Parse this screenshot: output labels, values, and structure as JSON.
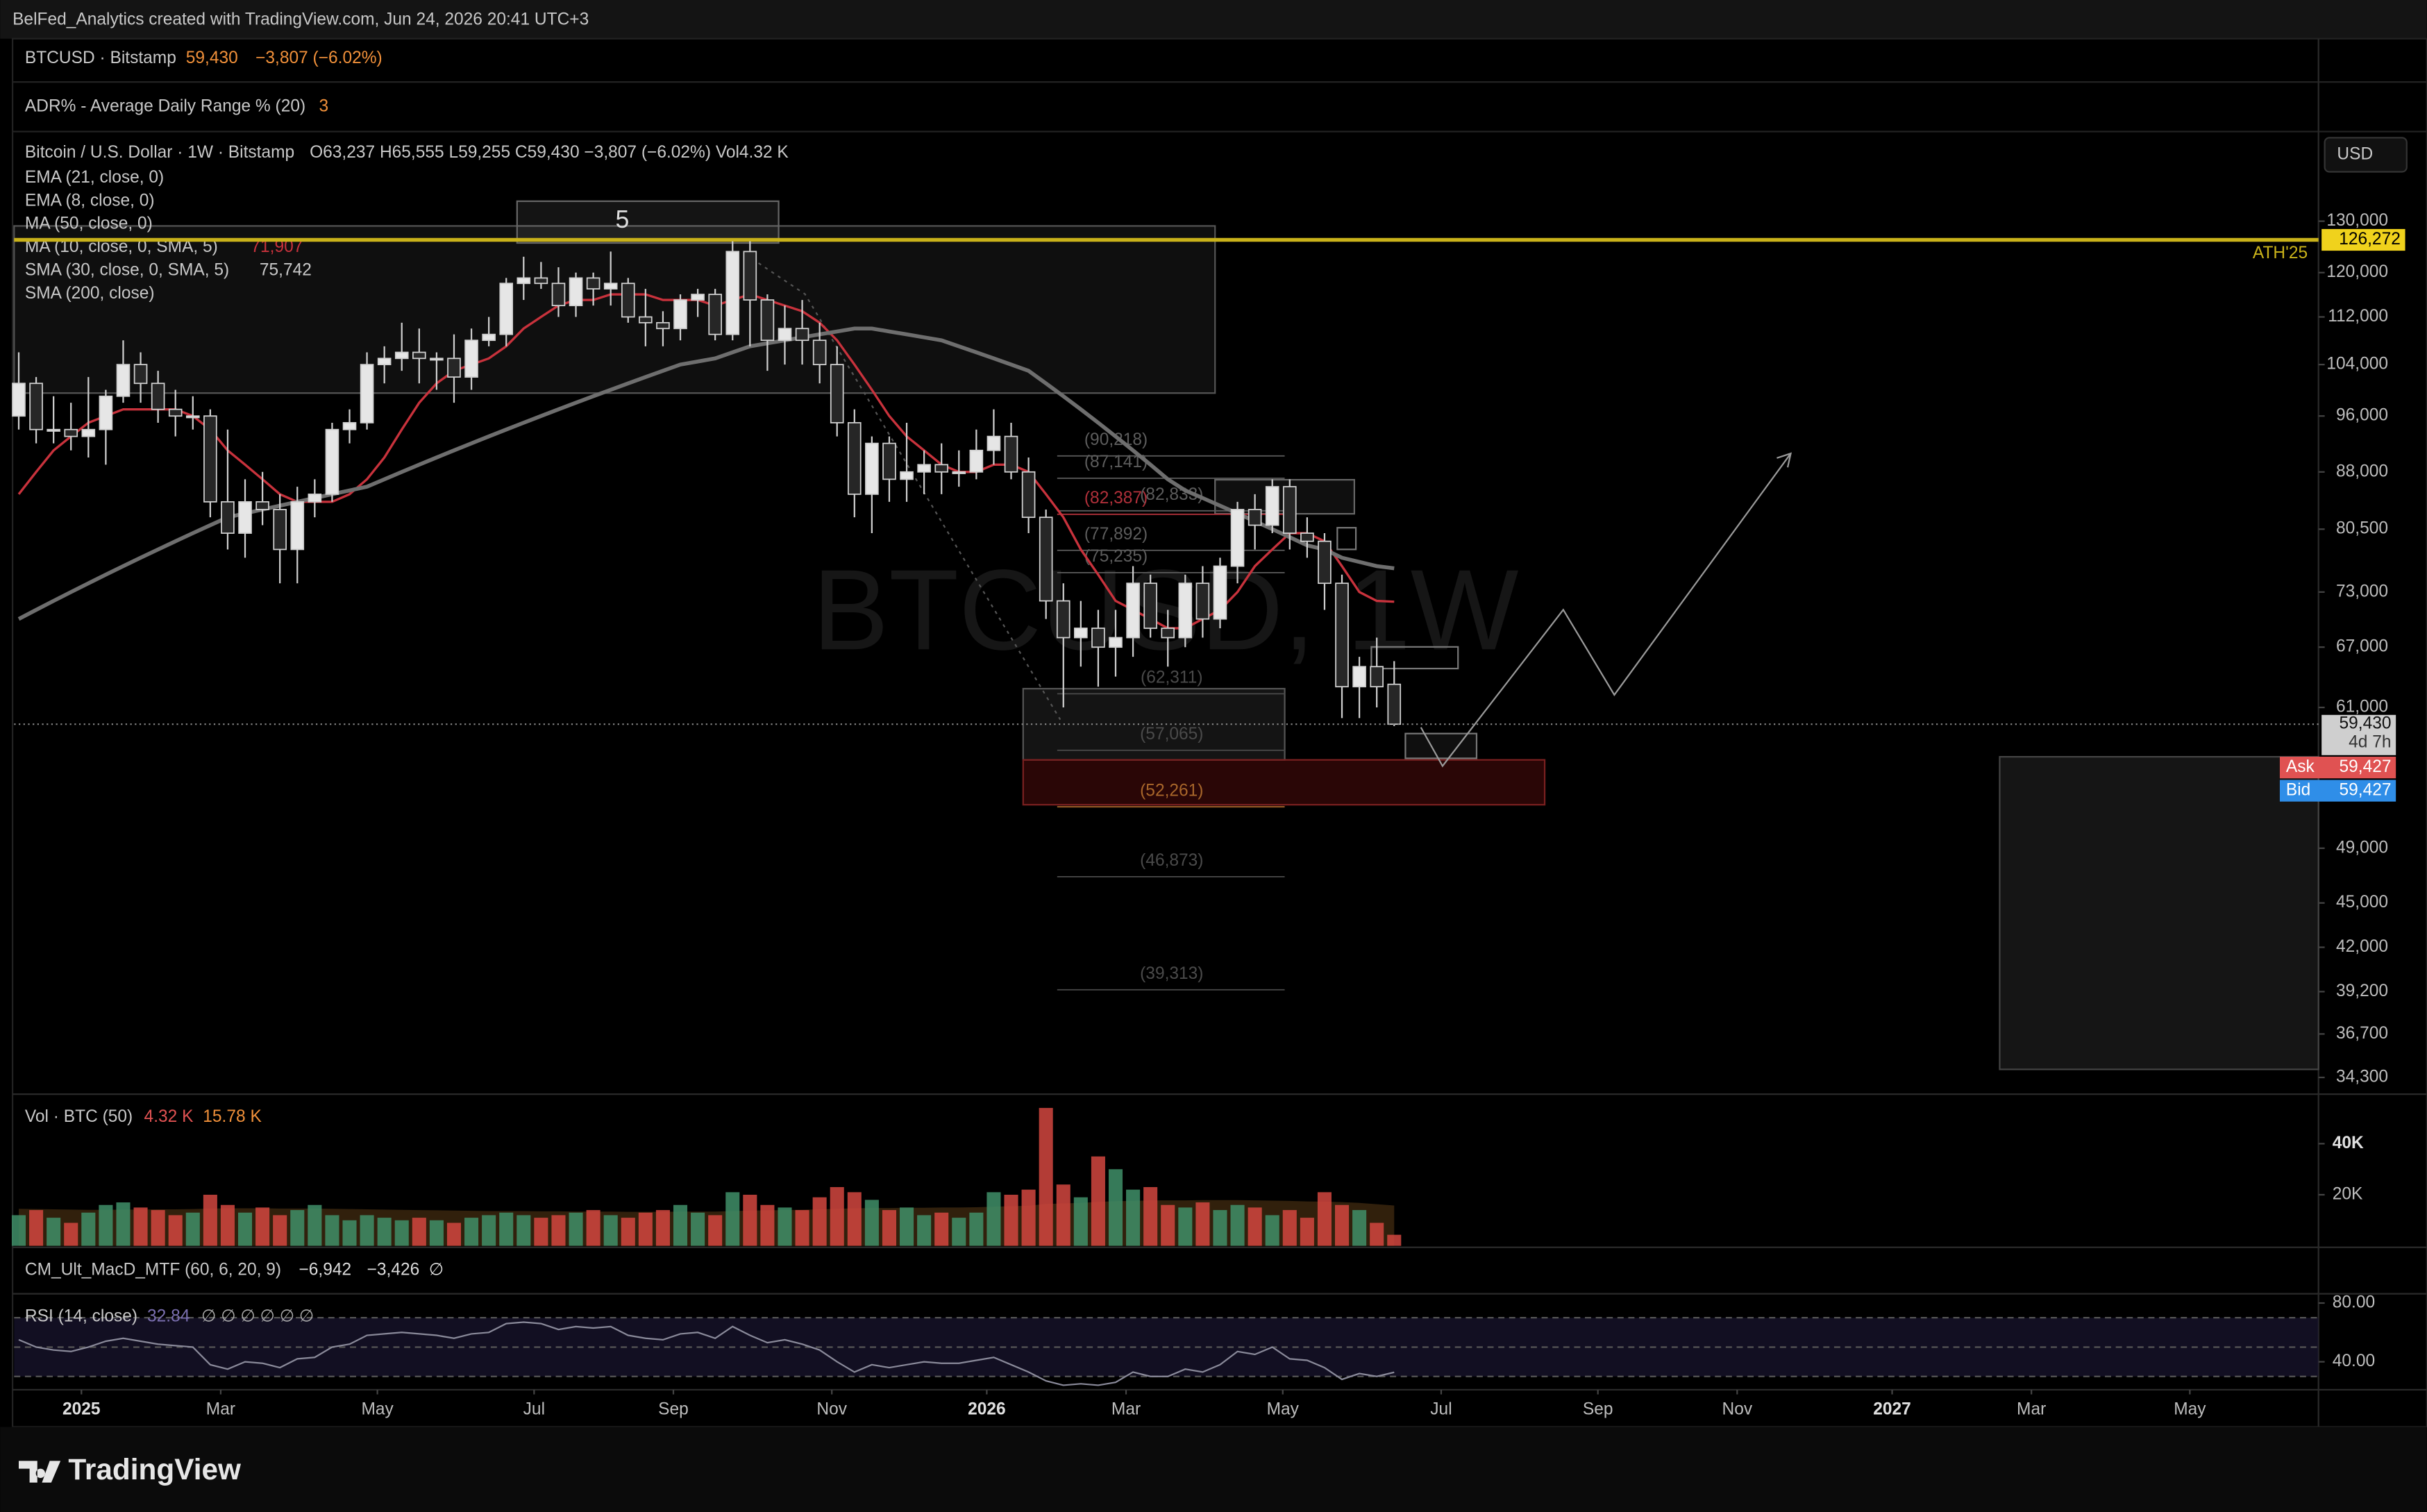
{
  "header": "BelFed_Analytics created with TradingView.com, Jun 24, 2026 20:41 UTC+3",
  "symbol_bar": {
    "symbol": "BTCUSD · Bitstamp",
    "price": "59,430",
    "change": "−3,807 (−6.02%)"
  },
  "adr_bar": {
    "label": "ADR% - Average Daily Range % (20)",
    "value": "3"
  },
  "currency": "USD",
  "watermark": "BTCUSD, 1W",
  "wave_label": "5",
  "brand": "TradingView",
  "quote_tags": [
    {
      "label": "Ask",
      "price": "59,427",
      "color": "#e05252"
    },
    {
      "label": "Bid",
      "price": "59,427",
      "color": "#2f8ee8"
    }
  ],
  "chart_data": [
    {
      "type": "candlestick",
      "title": "Bitcoin / U.S. Dollar · 1W · Bitstamp",
      "ohlc_text": "O63,237  H65,555  L59,255  C59,430  −3,807 (−6.02%)  Vol4.32 K",
      "log_scale": true,
      "up_color": "#e6e6e6",
      "down_color": "#262626",
      "wick_color": "#cfcfcf",
      "open": [
        96000,
        101000,
        94000,
        94000,
        93000,
        94000,
        99000,
        104000,
        101000,
        97000,
        96000,
        96000,
        84000,
        80000,
        84000,
        83000,
        78000,
        84000,
        85000,
        94000,
        95000,
        104000,
        105000,
        106000,
        105000,
        105000,
        102000,
        108000,
        109000,
        118000,
        119000,
        118000,
        114000,
        119000,
        117000,
        118000,
        112000,
        111000,
        110000,
        115000,
        116000,
        109000,
        124000,
        115000,
        108000,
        110000,
        108000,
        104000,
        95000,
        85000,
        92000,
        87000,
        88000,
        89000,
        88000,
        88000,
        91000,
        93000,
        88000,
        82000,
        72000,
        68000,
        69000,
        67000,
        68000,
        74000,
        69000,
        68000,
        74000,
        70000,
        76000,
        83000,
        81000,
        86000,
        80000,
        79000,
        74000,
        63000,
        65000,
        63237
      ],
      "high": [
        106000,
        102000,
        99000,
        98000,
        102000,
        100000,
        108000,
        106000,
        103000,
        100000,
        99000,
        97000,
        94000,
        87000,
        88000,
        85000,
        86000,
        87000,
        95000,
        97000,
        106000,
        107000,
        111000,
        110000,
        106000,
        109000,
        110000,
        112000,
        119000,
        123000,
        122000,
        121000,
        120000,
        120000,
        124000,
        119000,
        117000,
        113000,
        116000,
        117000,
        117000,
        126000,
        126000,
        116000,
        114000,
        115000,
        111000,
        107000,
        97000,
        93000,
        93000,
        95000,
        91000,
        92000,
        91000,
        94000,
        97000,
        95000,
        90000,
        83000,
        74000,
        72000,
        71000,
        71000,
        76000,
        75000,
        71000,
        75000,
        76000,
        77000,
        84000,
        85000,
        87000,
        87000,
        82000,
        80000,
        75000,
        66000,
        68000,
        65555
      ],
      "low": [
        94000,
        92000,
        92000,
        91000,
        90000,
        89000,
        98000,
        98000,
        95000,
        93000,
        94000,
        82000,
        78000,
        77000,
        81000,
        74000,
        74000,
        82000,
        84000,
        92000,
        94000,
        101000,
        103000,
        101000,
        100000,
        98000,
        100000,
        107000,
        107000,
        115000,
        117000,
        112000,
        112000,
        114000,
        114000,
        111000,
        107000,
        107000,
        108000,
        112000,
        108000,
        108000,
        107000,
        103000,
        104000,
        104000,
        101000,
        93000,
        82000,
        80000,
        84000,
        84000,
        85000,
        85000,
        86000,
        87000,
        89000,
        87000,
        80000,
        70000,
        61000,
        65000,
        63000,
        64000,
        66000,
        68000,
        65000,
        67000,
        68000,
        69000,
        74000,
        78000,
        80000,
        78000,
        77000,
        71000,
        60000,
        60000,
        61000,
        59255
      ],
      "close": [
        101000,
        94000,
        94000,
        93000,
        94000,
        99000,
        104000,
        101000,
        97000,
        96000,
        96000,
        84000,
        80000,
        84000,
        83000,
        78000,
        84000,
        85000,
        94000,
        95000,
        104000,
        105000,
        106000,
        105000,
        105000,
        102000,
        108000,
        109000,
        118000,
        119000,
        118000,
        114000,
        119000,
        117000,
        118000,
        112000,
        111000,
        110000,
        115000,
        116000,
        109000,
        124000,
        115000,
        108000,
        110000,
        108000,
        104000,
        95000,
        85000,
        92000,
        87000,
        88000,
        89000,
        88000,
        88000,
        91000,
        93000,
        88000,
        82000,
        72000,
        68000,
        69000,
        67000,
        68000,
        74000,
        69000,
        68000,
        74000,
        70000,
        76000,
        83000,
        81000,
        86000,
        80000,
        79000,
        74000,
        63000,
        65000,
        63000,
        59430
      ],
      "xlim": [
        0,
        132
      ],
      "xticks": [
        {
          "value": 3.6,
          "label": "2025"
        },
        {
          "value": 11.6,
          "label": "Mar"
        },
        {
          "value": 20.6,
          "label": "May"
        },
        {
          "value": 29.6,
          "label": "Jul"
        },
        {
          "value": 37.6,
          "label": "Sep"
        },
        {
          "value": 46.7,
          "label": "Nov"
        },
        {
          "value": 55.6,
          "label": "2026"
        },
        {
          "value": 63.6,
          "label": "Mar"
        },
        {
          "value": 72.6,
          "label": "May"
        },
        {
          "value": 81.7,
          "label": "Jul"
        },
        {
          "value": 90.7,
          "label": "Sep"
        },
        {
          "value": 98.7,
          "label": "Nov"
        },
        {
          "value": 107.6,
          "label": "2027"
        },
        {
          "value": 115.6,
          "label": "Mar"
        },
        {
          "value": 124.7,
          "label": "May"
        }
      ],
      "ylim": [
        33500,
        141400
      ],
      "yticks": [
        {
          "value": 130000,
          "label": "130,000"
        },
        {
          "value": 120000,
          "label": "120,000"
        },
        {
          "value": 112000,
          "label": "112,000"
        },
        {
          "value": 104000,
          "label": "104,000"
        },
        {
          "value": 96000,
          "label": "96,000"
        },
        {
          "value": 88000,
          "label": "88,000"
        },
        {
          "value": 80500,
          "label": "80,500"
        },
        {
          "value": 73000,
          "label": "73,000"
        },
        {
          "value": 67000,
          "label": "67,000"
        },
        {
          "value": 61000,
          "label": "61,000"
        },
        {
          "value": 49000,
          "label": "49,000"
        },
        {
          "value": 45000,
          "label": "45,000"
        },
        {
          "value": 42000,
          "label": "42,000"
        },
        {
          "value": 39200,
          "label": "39,200"
        },
        {
          "value": 36700,
          "label": "36,700"
        },
        {
          "value": 34300,
          "label": "34,300"
        }
      ],
      "ath": {
        "value": 126272,
        "label": "126,272",
        "name": "ATH'25",
        "color": "#c9b21a"
      },
      "last": {
        "value": 59430,
        "label": "59,430",
        "countdown": "4d 7h"
      },
      "indicators": [
        {
          "name": "EMA (21, close, 0)"
        },
        {
          "name": "EMA (8, close, 0)"
        },
        {
          "name": "MA (50, close, 0)"
        },
        {
          "name": "MA (10, close, 0, SMA, 5)",
          "value": "71,907",
          "color": "#c8323c",
          "values": [
            85000,
            88000,
            91000,
            93000,
            95000,
            96000,
            97000,
            97000,
            97000,
            97000,
            96000,
            94000,
            91000,
            89000,
            87000,
            85000,
            84000,
            84000,
            84000,
            85000,
            87000,
            90000,
            94000,
            98000,
            101000,
            103000,
            104000,
            105000,
            107000,
            110000,
            112000,
            114000,
            115000,
            115000,
            116000,
            116000,
            116000,
            115000,
            115000,
            115000,
            114000,
            115000,
            116000,
            115000,
            114000,
            113000,
            111000,
            108000,
            104000,
            100000,
            96000,
            93000,
            91000,
            89000,
            88000,
            88000,
            89000,
            89000,
            88000,
            85000,
            82000,
            78000,
            75000,
            72000,
            71000,
            70000,
            69000,
            69000,
            70000,
            71000,
            73000,
            76000,
            78000,
            80000,
            80000,
            79000,
            76000,
            73000,
            72000,
            71907
          ]
        },
        {
          "name": "SMA (30, close, 0, SMA, 5)",
          "value": "75,742",
          "color": "#6e6e6e",
          "values": [
            70000,
            71000,
            72000,
            73000,
            74000,
            75000,
            76000,
            77000,
            78000,
            79000,
            80000,
            81000,
            82000,
            82500,
            83000,
            83500,
            84000,
            84500,
            85000,
            85500,
            86000,
            87000,
            88000,
            89000,
            90000,
            91000,
            92000,
            93000,
            94000,
            95000,
            96000,
            97000,
            98000,
            99000,
            100000,
            101000,
            102000,
            103000,
            104000,
            104500,
            105000,
            106000,
            107000,
            107500,
            108000,
            108500,
            109000,
            109500,
            110000,
            110000,
            109500,
            109000,
            108500,
            108000,
            107000,
            106000,
            105000,
            104000,
            103000,
            101000,
            99000,
            97000,
            95000,
            93000,
            91000,
            89000,
            87000,
            85500,
            84500,
            83500,
            82500,
            81500,
            80500,
            79500,
            78500,
            78000,
            77000,
            76500,
            76000,
            75742
          ]
        },
        {
          "name": "SMA (200, close)"
        }
      ],
      "levels": [
        {
          "value": 90218,
          "label": "(90,218)",
          "color": "#5c5c5c"
        },
        {
          "value": 87141,
          "label": "(87,141)",
          "color": "#5c5c5c"
        },
        {
          "value": 82387,
          "label": "(82,387)",
          "color": "#b0303a"
        },
        {
          "value": 82833,
          "label": "(82,833)",
          "color": "#5c5c5c"
        },
        {
          "value": 77892,
          "label": "(77,892)",
          "color": "#5c5c5c"
        },
        {
          "value": 75235,
          "label": "(75,235)",
          "color": "#5c5c5c"
        },
        {
          "value": 62311,
          "label": "(62,311)",
          "color": "#4a4a4a"
        },
        {
          "value": 57065,
          "label": "(57,065)",
          "color": "#4a4a4a"
        },
        {
          "value": 52261,
          "label": "(52,261)",
          "color": "#a8662a"
        },
        {
          "value": 46873,
          "label": "(46,873)",
          "color": "#4a4a4a"
        },
        {
          "value": 39313,
          "label": "(39,313)",
          "color": "#4a4a4a"
        }
      ]
    },
    {
      "type": "bar",
      "title": "Vol · BTC (50)",
      "last_label": "4.32 K",
      "ma_label": "15.78 K",
      "up_color": "#3f8f68",
      "down_color": "#d2473f",
      "ma_color": "#5a3a16",
      "values": [
        12000,
        14000,
        11000,
        9000,
        13000,
        16000,
        17000,
        15000,
        14000,
        12000,
        13000,
        20000,
        16000,
        13000,
        15000,
        12000,
        14000,
        16000,
        12000,
        10000,
        12000,
        11000,
        10000,
        11000,
        10000,
        9000,
        11000,
        12000,
        13000,
        12000,
        11000,
        12000,
        13000,
        14000,
        12000,
        11000,
        13000,
        14000,
        16000,
        13000,
        12000,
        21000,
        20000,
        16000,
        15000,
        14000,
        19000,
        23000,
        21000,
        18000,
        14000,
        15000,
        12000,
        13000,
        11000,
        13000,
        21000,
        20000,
        22000,
        54000,
        24000,
        19000,
        35000,
        30000,
        22000,
        23000,
        16000,
        15000,
        17000,
        14000,
        16000,
        15000,
        12000,
        14000,
        11000,
        21000,
        16000,
        14000,
        9000,
        4320
      ],
      "ma_values": [
        14500,
        14400,
        14300,
        14200,
        14100,
        14100,
        14200,
        14200,
        14300,
        14300,
        14400,
        14600,
        14700,
        14700,
        14700,
        14600,
        14600,
        14600,
        14500,
        14400,
        14300,
        14200,
        14100,
        14000,
        13900,
        13800,
        13700,
        13600,
        13600,
        13600,
        13500,
        13500,
        13400,
        13400,
        13400,
        13300,
        13300,
        13300,
        13400,
        13400,
        13400,
        13600,
        13800,
        13900,
        14000,
        14100,
        14300,
        14500,
        14700,
        14800,
        14800,
        14900,
        14900,
        15000,
        15000,
        15100,
        15300,
        15500,
        15700,
        16400,
        16600,
        16800,
        17200,
        17500,
        17600,
        17800,
        17800,
        17800,
        17900,
        17900,
        17900,
        17800,
        17700,
        17600,
        17400,
        17300,
        17100,
        16800,
        16300,
        15780
      ],
      "ylim": [
        0,
        60000
      ],
      "yticks": [
        {
          "value": 40000,
          "label": "40K"
        },
        {
          "value": 20000,
          "label": "20K"
        }
      ]
    },
    {
      "type": "macd-legend",
      "title": "CM_Ult_MacD_MTF (60, 6, 20, 9)",
      "values_text": [
        "−6,942",
        "−3,426",
        "∅"
      ]
    },
    {
      "type": "line",
      "title": "RSI (14, close)",
      "last_label": "32.84",
      "extra_text": "∅ ∅ ∅ ∅ ∅ ∅",
      "color": "#8a8a9a",
      "values": [
        55,
        50,
        48,
        47,
        50,
        54,
        56,
        54,
        52,
        51,
        50,
        38,
        35,
        40,
        39,
        36,
        42,
        43,
        50,
        52,
        58,
        59,
        60,
        59,
        58,
        56,
        59,
        60,
        66,
        67,
        66,
        62,
        64,
        63,
        64,
        58,
        56,
        55,
        59,
        60,
        56,
        64,
        58,
        53,
        55,
        52,
        48,
        40,
        33,
        38,
        36,
        38,
        40,
        39,
        39,
        41,
        43,
        38,
        33,
        27,
        24,
        25,
        24,
        26,
        33,
        30,
        30,
        35,
        33,
        38,
        47,
        45,
        50,
        42,
        41,
        36,
        28,
        32,
        30,
        32.84
      ],
      "ylim": [
        22,
        84.2
      ],
      "yticks": [
        {
          "value": 80,
          "label": "80.00"
        },
        {
          "value": 40,
          "label": "40.00"
        }
      ],
      "levels": [
        70,
        50,
        30
      ]
    }
  ]
}
